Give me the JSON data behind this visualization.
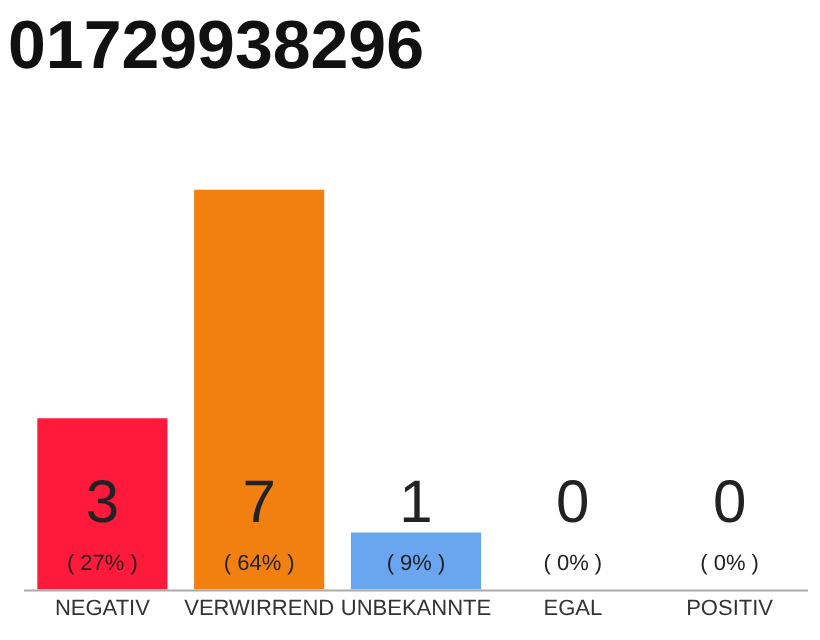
{
  "chart_data": {
    "type": "bar",
    "title": "01729938296",
    "categories": [
      "NEGATIV",
      "VERWIRREND",
      "UNBEKANNTE",
      "EGAL",
      "POSITIV"
    ],
    "values": [
      3,
      7,
      1,
      0,
      0
    ],
    "colors": [
      "#ff1a3c",
      "#f28010",
      "#6aa6f0",
      "#f28010",
      "#f28010"
    ],
    "ylim": [
      0,
      7
    ],
    "tick_labels": "x",
    "data_labels": true,
    "grid": false,
    "legend": false,
    "annotations": [
      {
        "text": "( 27% )",
        "x": "NEGATIV",
        "y": 0
      },
      {
        "text": "( 64% )",
        "x": "VERWIRREND",
        "y": 0
      },
      {
        "text": "( 9% )",
        "x": "UNBEKANNTE",
        "y": 0
      },
      {
        "text": "( 0% )",
        "x": "EGAL",
        "y": 0
      },
      {
        "text": "( 0% )",
        "x": "POSITIV",
        "y": 0
      }
    ]
  }
}
